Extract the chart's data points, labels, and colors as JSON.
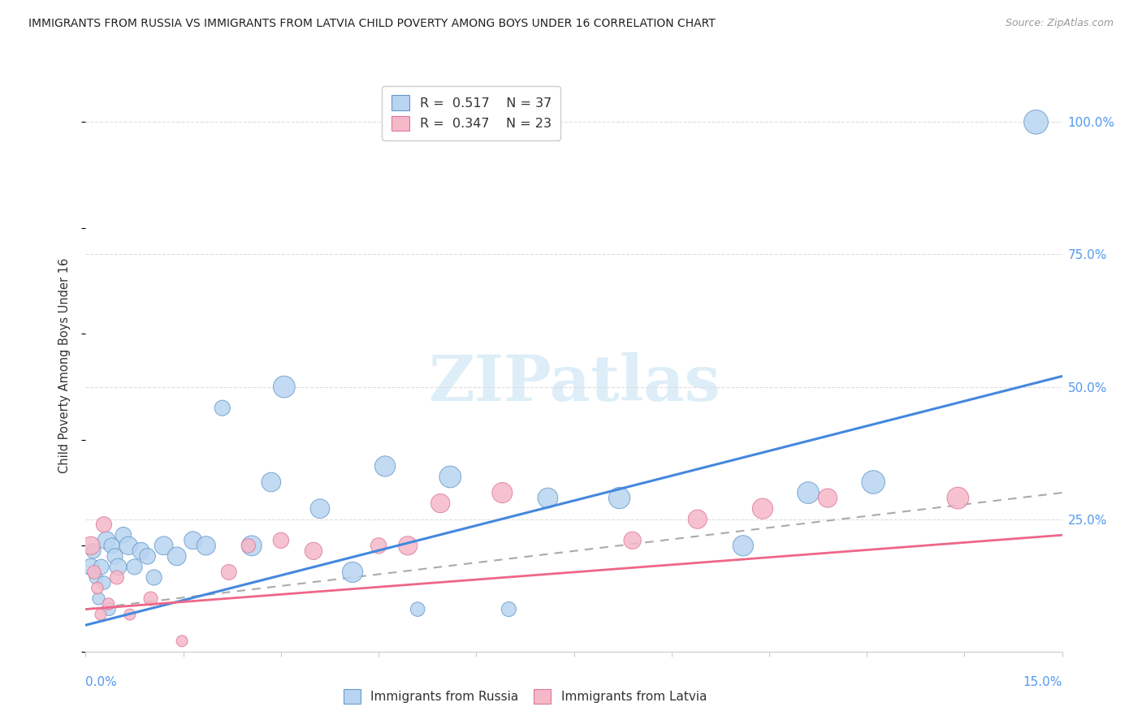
{
  "title": "IMMIGRANTS FROM RUSSIA VS IMMIGRANTS FROM LATVIA CHILD POVERTY AMONG BOYS UNDER 16 CORRELATION CHART",
  "source": "Source: ZipAtlas.com",
  "ylabel": "Child Poverty Among Boys Under 16",
  "xlim": [
    0.0,
    15.0
  ],
  "ylim": [
    0.0,
    108.0
  ],
  "russia_R": "0.517",
  "russia_N": "37",
  "latvia_R": "0.347",
  "latvia_N": "23",
  "russia_color": "#b8d4f0",
  "latvia_color": "#f5b8c8",
  "russia_edge_color": "#6699cc",
  "latvia_edge_color": "#dd7799",
  "russia_line_color": "#4488dd",
  "latvia_line_color": "#ee6688",
  "dashed_line_color": "#aaaaaa",
  "right_axis_color": "#5599ee",
  "watermark_color": "#ddeef8",
  "background_color": "#ffffff",
  "russia_reg_x0": 0.0,
  "russia_reg_y0": 5.0,
  "russia_reg_x1": 15.0,
  "russia_reg_y1": 52.0,
  "latvia_reg_x0": 0.0,
  "latvia_reg_y0": 8.0,
  "latvia_reg_x1": 15.0,
  "latvia_reg_y1": 22.0,
  "dash_x0": 0.0,
  "dash_y0": 8.0,
  "dash_x1": 15.0,
  "dash_y1": 30.0,
  "russia_x": [
    0.08,
    0.12,
    0.16,
    0.2,
    0.24,
    0.28,
    0.32,
    0.36,
    0.4,
    0.45,
    0.5,
    0.58,
    0.66,
    0.75,
    0.85,
    0.95,
    1.05,
    1.2,
    1.4,
    1.65,
    1.85,
    2.1,
    2.55,
    2.85,
    3.05,
    3.6,
    4.1,
    4.6,
    5.1,
    5.6,
    6.5,
    7.1,
    8.2,
    10.1,
    11.1,
    12.1,
    14.6
  ],
  "russia_y": [
    16,
    19,
    14,
    10,
    16,
    13,
    21,
    8,
    20,
    18,
    16,
    22,
    20,
    16,
    19,
    18,
    14,
    20,
    18,
    21,
    20,
    46,
    20,
    32,
    50,
    27,
    15,
    35,
    8,
    33,
    8,
    29,
    29,
    20,
    30,
    32,
    100
  ],
  "russia_size": [
    220,
    170,
    140,
    120,
    180,
    140,
    250,
    130,
    190,
    190,
    220,
    200,
    260,
    190,
    230,
    200,
    190,
    270,
    270,
    250,
    280,
    190,
    320,
    290,
    370,
    290,
    330,
    330,
    160,
    370,
    170,
    320,
    360,
    330,
    370,
    420,
    460
  ],
  "latvia_x": [
    0.08,
    0.13,
    0.18,
    0.23,
    0.28,
    0.35,
    0.48,
    0.68,
    1.0,
    1.48,
    2.2,
    2.5,
    3.0,
    3.5,
    4.5,
    4.95,
    5.45,
    6.4,
    8.4,
    9.4,
    10.4,
    11.4,
    13.4
  ],
  "latvia_y": [
    20,
    15,
    12,
    7,
    24,
    9,
    14,
    7,
    10,
    2,
    15,
    20,
    21,
    19,
    20,
    20,
    28,
    30,
    21,
    25,
    27,
    29,
    29
  ],
  "latvia_size": [
    260,
    140,
    110,
    100,
    190,
    110,
    150,
    100,
    150,
    100,
    185,
    155,
    195,
    235,
    195,
    280,
    280,
    325,
    235,
    280,
    330,
    280,
    370
  ],
  "ytick_positions": [
    0,
    25,
    50,
    75,
    100
  ],
  "ytick_labels": [
    "",
    "25.0%",
    "50.0%",
    "75.0%",
    "100.0%"
  ]
}
